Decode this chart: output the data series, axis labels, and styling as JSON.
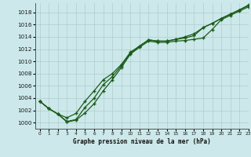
{
  "xlabel": "Graphe pression niveau de la mer (hPa)",
  "background_color": "#cce8ea",
  "grid_color": "#b0cccc",
  "line_color": "#1a5c1a",
  "xlim": [
    -0.5,
    23
  ],
  "ylim": [
    999,
    1019.5
  ],
  "yticks": [
    1000,
    1002,
    1004,
    1006,
    1008,
    1010,
    1012,
    1014,
    1016,
    1018
  ],
  "xticks": [
    0,
    1,
    2,
    3,
    4,
    5,
    6,
    7,
    8,
    9,
    10,
    11,
    12,
    13,
    14,
    15,
    16,
    17,
    18,
    19,
    20,
    21,
    22,
    23
  ],
  "line1_y": [
    1003.5,
    1002.3,
    1001.4,
    1000.1,
    1000.4,
    1001.6,
    1003.1,
    1005.2,
    1007.0,
    1009.0,
    1011.2,
    1012.3,
    1013.3,
    1013.1,
    1013.1,
    1013.3,
    1013.4,
    1013.6,
    1013.8,
    1015.2,
    1016.8,
    1017.5,
    1018.2,
    1018.9
  ],
  "line2_y": [
    1003.5,
    1002.3,
    1001.4,
    1000.2,
    1000.5,
    1002.5,
    1004.0,
    1006.2,
    1007.5,
    1009.3,
    1011.3,
    1012.5,
    1013.5,
    1013.3,
    1013.3,
    1013.6,
    1013.8,
    1014.2,
    1015.5,
    1016.2,
    1017.0,
    1017.7,
    1018.4,
    1019.1
  ],
  "line3_y": [
    1003.5,
    1002.3,
    1001.4,
    1000.8,
    1001.5,
    1003.5,
    1005.2,
    1007.0,
    1008.0,
    1009.5,
    1011.5,
    1012.5,
    1013.5,
    1013.3,
    1013.3,
    1013.6,
    1014.0,
    1014.5,
    1015.5,
    1016.2,
    1017.0,
    1017.7,
    1018.4,
    1019.2
  ]
}
